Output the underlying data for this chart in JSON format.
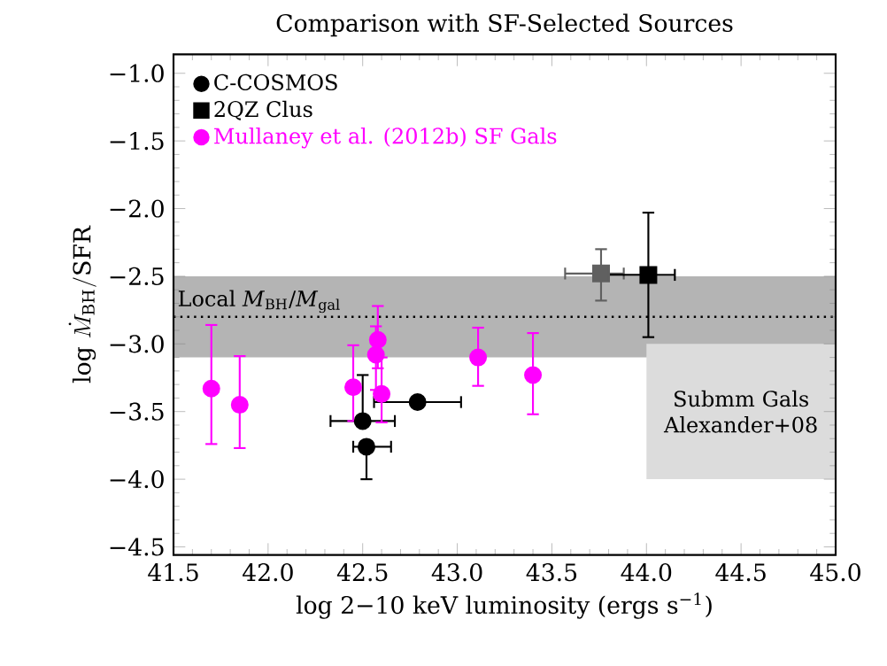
{
  "chart_data": {
    "type": "scatter",
    "title": "Comparison with SF-Selected Sources",
    "xlabel": "log 2−10 keV luminosity (ergs s$^{−1}$)",
    "ylabel": "\\log\\,\\dot{M}_{\\rm BH}/{\\rm SFR}",
    "xlim": [
      41.5,
      45.0
    ],
    "ylim": [
      -4.56,
      -0.86
    ],
    "xticks": [
      {
        "value": 41.5,
        "label": "41.5"
      },
      {
        "value": 42.0,
        "label": "42.0"
      },
      {
        "value": 42.5,
        "label": "42.5"
      },
      {
        "value": 43.0,
        "label": "43.0"
      },
      {
        "value": 43.5,
        "label": "43.5"
      },
      {
        "value": 44.0,
        "label": "44.0"
      },
      {
        "value": 44.5,
        "label": "44.5"
      },
      {
        "value": 45.0,
        "label": "45.0"
      }
    ],
    "yticks": [
      {
        "value": -4.5,
        "label": "−4.5"
      },
      {
        "value": -4.0,
        "label": "−4.0"
      },
      {
        "value": -3.5,
        "label": "−3.5"
      },
      {
        "value": -3.0,
        "label": "−3.0"
      },
      {
        "value": -2.5,
        "label": "−2.5"
      },
      {
        "value": -2.0,
        "label": "−2.0"
      },
      {
        "value": -1.5,
        "label": "−1.5"
      },
      {
        "value": -1.0,
        "label": "−1.0"
      }
    ],
    "legend": "top left",
    "grid": false,
    "series": [
      {
        "type": "bar",
        "color": "#dcdcdc",
        "x": [
          44.5
        ],
        "base": [
          -4.0
        ],
        "values": [
          1.0
        ],
        "value_labels": [
          "Submm Gals Alexander+08"
        ]
      },
      {
        "name": "C-COSMOS",
        "color": "#000000",
        "marker": "circle",
        "x": [
          42.5,
          42.52,
          42.79
        ],
        "values": [
          -3.57,
          -3.76,
          -3.43
        ],
        "errors": [
          [
            -3.57,
            -3.23
          ],
          [
            -4.0,
            -3.76
          ],
          null
        ],
        "xerrors": [
          [
            42.33,
            42.67
          ],
          [
            42.45,
            42.65
          ],
          [
            42.56,
            43.02
          ]
        ]
      },
      {
        "name": "2QZ Clus",
        "color": "#000000",
        "colors": [
          "#606060",
          "#000000"
        ],
        "marker": "square",
        "x": [
          43.76,
          44.01
        ],
        "values": [
          -2.48,
          -2.49
        ],
        "errors": [
          [
            -2.68,
            -2.3
          ],
          [
            -2.95,
            -2.03
          ]
        ],
        "xerrors": [
          [
            43.57,
            43.88
          ],
          [
            43.78,
            44.15
          ]
        ]
      },
      {
        "name": "Mullaney et al. (2012b) SF Gals",
        "color": "#ff00ff",
        "marker": "circle",
        "x": [
          41.7,
          41.85,
          42.45,
          42.57,
          42.58,
          42.6,
          43.11,
          43.4
        ],
        "values": [
          -3.33,
          -3.45,
          -3.32,
          -3.08,
          -2.97,
          -3.37,
          -3.1,
          -3.23
        ],
        "errors": [
          [
            -3.74,
            -2.86
          ],
          [
            -3.77,
            -3.09
          ],
          [
            -3.57,
            -3.01
          ],
          [
            -3.34,
            -2.87
          ],
          [
            -3.18,
            -2.72
          ],
          [
            -3.58,
            -3.1
          ],
          [
            -3.31,
            -2.88
          ],
          [
            -3.52,
            -2.92
          ]
        ]
      }
    ],
    "ref_lines": [
      {
        "axis": "y",
        "value": -2.8,
        "label": "Local *M*$_{BH}$/*M*$_{gal}$",
        "line_style": "dotted",
        "color": "#000000"
      }
    ],
    "bands": [
      {
        "axis": "y",
        "from": -3.1,
        "to": -2.5,
        "color": "#b4b4b4"
      }
    ]
  }
}
